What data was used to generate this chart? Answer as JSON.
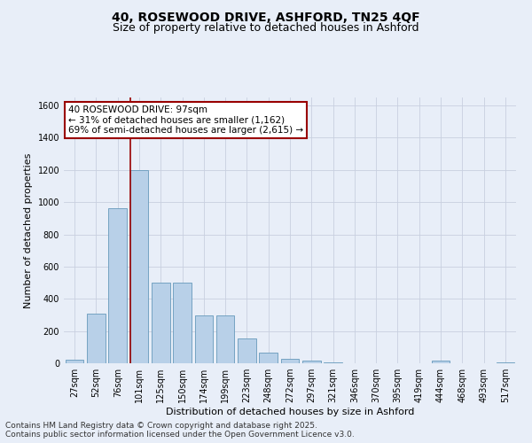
{
  "title_line1": "40, ROSEWOOD DRIVE, ASHFORD, TN25 4QF",
  "title_line2": "Size of property relative to detached houses in Ashford",
  "xlabel": "Distribution of detached houses by size in Ashford",
  "ylabel": "Number of detached properties",
  "categories": [
    "27sqm",
    "52sqm",
    "76sqm",
    "101sqm",
    "125sqm",
    "150sqm",
    "174sqm",
    "199sqm",
    "223sqm",
    "248sqm",
    "272sqm",
    "297sqm",
    "321sqm",
    "346sqm",
    "370sqm",
    "395sqm",
    "419sqm",
    "444sqm",
    "468sqm",
    "493sqm",
    "517sqm"
  ],
  "values": [
    20,
    310,
    960,
    1200,
    500,
    500,
    295,
    295,
    155,
    65,
    25,
    15,
    5,
    0,
    0,
    0,
    0,
    15,
    0,
    0,
    5
  ],
  "bar_color": "#b8d0e8",
  "bar_edgecolor": "#6699bb",
  "vline_color": "#990000",
  "vline_xindex": 3,
  "ylim": [
    0,
    1650
  ],
  "yticks": [
    0,
    200,
    400,
    600,
    800,
    1000,
    1200,
    1400,
    1600
  ],
  "annotation_text": "40 ROSEWOOD DRIVE: 97sqm\n← 31% of detached houses are smaller (1,162)\n69% of semi-detached houses are larger (2,615) →",
  "annotation_box_edgecolor": "#990000",
  "background_color": "#e8eef8",
  "plot_background": "#e8eef8",
  "grid_color": "#c8d0e0",
  "footer_line1": "Contains HM Land Registry data © Crown copyright and database right 2025.",
  "footer_line2": "Contains public sector information licensed under the Open Government Licence v3.0.",
  "title_fontsize": 10,
  "subtitle_fontsize": 9,
  "annotation_fontsize": 7.5,
  "axis_label_fontsize": 8,
  "tick_fontsize": 7,
  "footer_fontsize": 6.5
}
